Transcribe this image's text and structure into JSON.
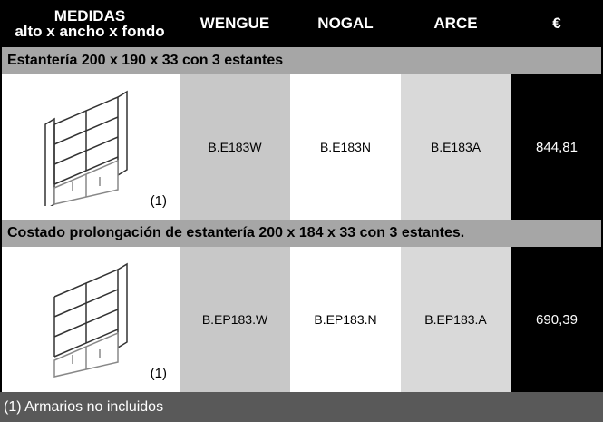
{
  "header": {
    "measures_title": "MEDIDAS",
    "measures_subtitle": "alto x ancho x fondo",
    "columns": [
      "WENGUE",
      "NOGAL",
      "ARCE",
      "€"
    ]
  },
  "products": [
    {
      "title": "Estantería 200 x 190 x 33 con 3 estantes",
      "note": "(1)",
      "codes": [
        "B.E183W",
        "B.E183N",
        "B.E183A"
      ],
      "price": "844,81"
    },
    {
      "title": "Costado prolongación de estantería 200 x 184 x 33 con 3 estantes.",
      "note": "(1)",
      "codes": [
        "B.EP183.W",
        "B.EP183.N",
        "B.EP183.A"
      ],
      "price": "690,39"
    }
  ],
  "footer": "(1) Armarios no incluidos"
}
